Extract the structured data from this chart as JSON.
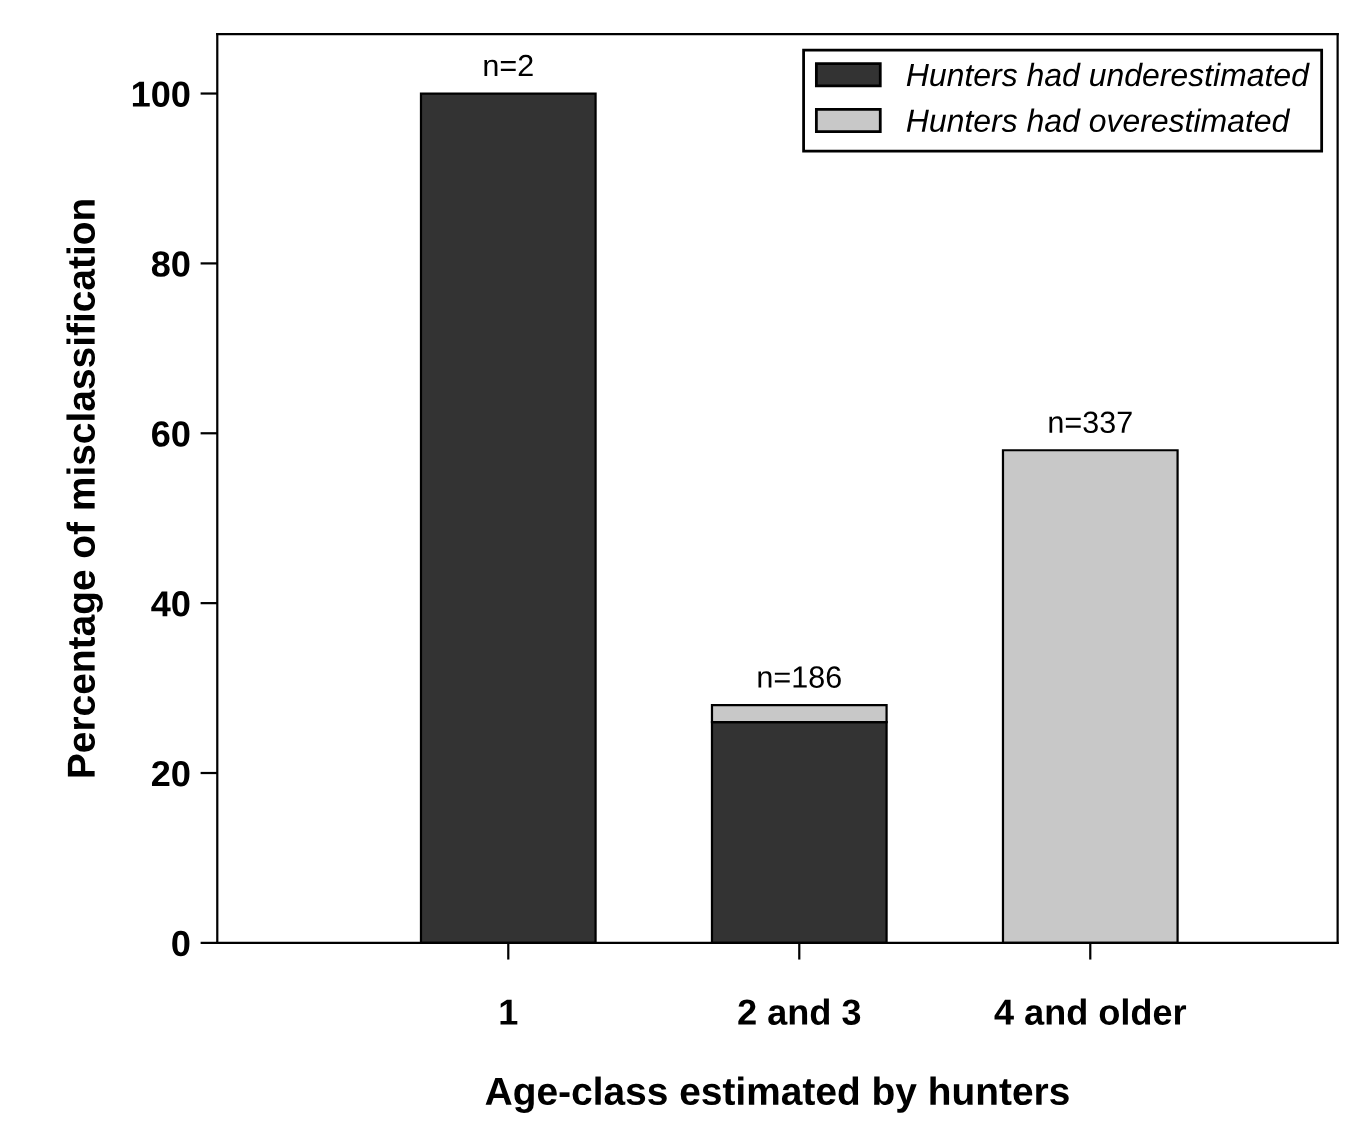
{
  "chart_data": {
    "type": "bar",
    "stacked": true,
    "xlabel": "Age-class estimated by hunters",
    "ylabel": "Percentage of misclassification",
    "categories": [
      "1",
      "2 and 3",
      "4 and older"
    ],
    "series": [
      {
        "name": "Hunters had underestimated",
        "color": "#333333",
        "values": [
          100,
          26,
          null
        ]
      },
      {
        "name": "Hunters had overestimated",
        "color": "#c8c8c8",
        "values": [
          null,
          2,
          58
        ]
      }
    ],
    "ylim": [
      0,
      107
    ],
    "yticks": [
      0,
      20,
      40,
      60,
      80,
      100
    ],
    "grid": false,
    "legend": "top right",
    "annotations": [
      {
        "text": "n=2",
        "x": "1",
        "y": 100
      },
      {
        "text": "n=186",
        "x": "2 and 3",
        "y": 28
      },
      {
        "text": "n=337",
        "x": "4 and older",
        "y": 58
      }
    ]
  }
}
